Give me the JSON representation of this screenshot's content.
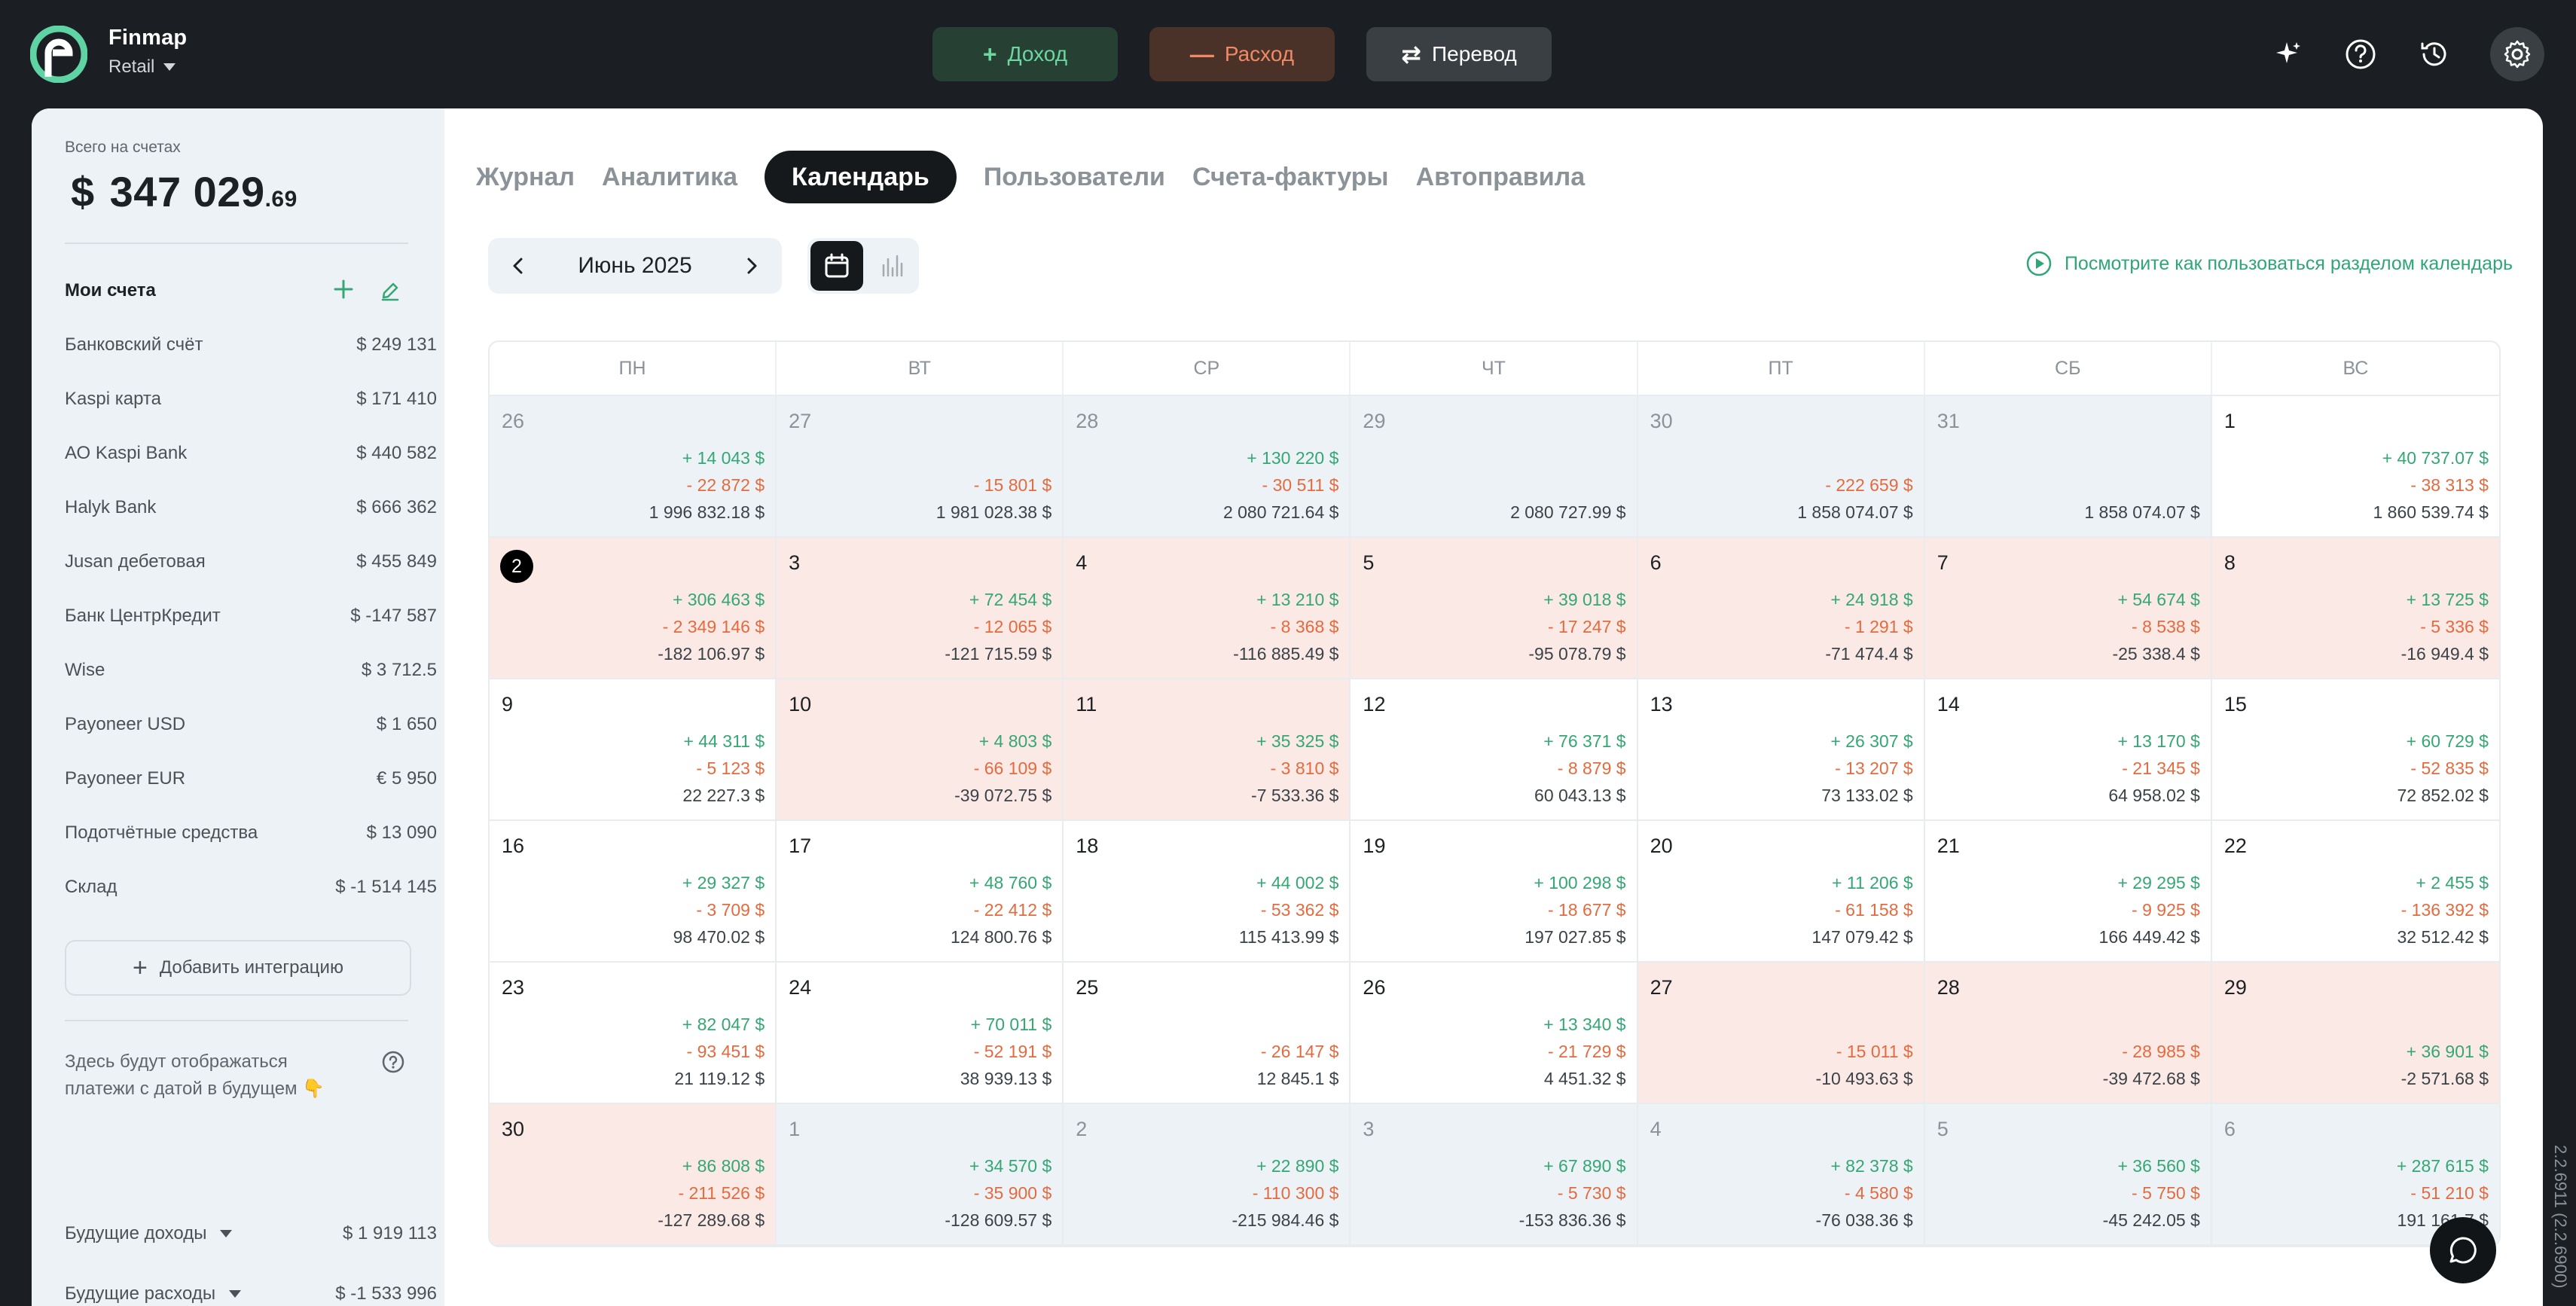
{
  "app": {
    "name": "Finmap",
    "workspace": "Retail"
  },
  "top_actions": {
    "income_label": "Доход",
    "expense_label": "Расход",
    "transfer_label": "Перевод"
  },
  "icons": {
    "top_right": [
      "sparkle-icon",
      "help-icon",
      "history-icon",
      "gear-icon"
    ]
  },
  "sidebar": {
    "total_label": "Всего на счетах",
    "total_currency": "$",
    "total_main": "347 029",
    "total_cents": ".69",
    "accounts_title": "Мои счета",
    "accounts": [
      {
        "name": "Банковский счёт",
        "amount": "$  249 131"
      },
      {
        "name": "Kaspi карта",
        "amount": "$  171 410"
      },
      {
        "name": "АО Kaspi Bank",
        "amount": "$  440 582"
      },
      {
        "name": "Halyk Bank",
        "amount": "$  666 362"
      },
      {
        "name": "Jusan дебетовая",
        "amount": "$  455 849"
      },
      {
        "name": "Банк ЦентрКредит",
        "amount": "$  -147 587"
      },
      {
        "name": "Wise",
        "amount": "$  3 712.5"
      },
      {
        "name": "Payoneer USD",
        "amount": "$  1 650"
      },
      {
        "name": "Payoneer EUR",
        "amount": "€  5 950"
      },
      {
        "name": "Подотчётные средства",
        "amount": "$  13 090"
      },
      {
        "name": "Склад",
        "amount": "$  -1 514 145"
      }
    ],
    "add_integration": "Добавить интеграцию",
    "future_note": "Здесь будут отображаться платежи с датой в будущем 👇",
    "future_income_label": "Будущие доходы",
    "future_income_amount": "$  1 919 113",
    "future_expense_label": "Будущие расходы",
    "future_expense_amount": "$  -1 533 996"
  },
  "tabs": [
    "Журнал",
    "Аналитика",
    "Календарь",
    "Пользователи",
    "Счета-фактуры",
    "Автоправила"
  ],
  "active_tab": "Календарь",
  "calendar_toolbar": {
    "month": "Июнь 2025",
    "howto_link": "Посмотрите как пользоваться разделом календарь"
  },
  "weekdays": [
    "ПН",
    "ВТ",
    "СР",
    "ЧТ",
    "ПТ",
    "СБ",
    "ВС"
  ],
  "colors": {
    "income": "#35a774",
    "expense": "#e36b3f",
    "negative_day_bg": "#fbe9e5",
    "other_month_bg": "#edf2f6"
  },
  "calendar_days": [
    {
      "day": "26",
      "income": "+ 14 043  $",
      "expense": "- 22 872  $",
      "balance": "1 996 832.18  $",
      "state": "other"
    },
    {
      "day": "27",
      "income": "",
      "expense": "- 15 801  $",
      "balance": "1 981 028.38  $",
      "state": "other"
    },
    {
      "day": "28",
      "income": "+ 130 220  $",
      "expense": "- 30 511  $",
      "balance": "2 080 721.64  $",
      "state": "other"
    },
    {
      "day": "29",
      "income": "",
      "expense": "",
      "balance": "2 080 727.99  $",
      "state": "other"
    },
    {
      "day": "30",
      "income": "",
      "expense": "- 222 659  $",
      "balance": "1 858 074.07  $",
      "state": "other"
    },
    {
      "day": "31",
      "income": "",
      "expense": "",
      "balance": "1 858 074.07  $",
      "state": "other"
    },
    {
      "day": "1",
      "income": "+ 40 737.07  $",
      "expense": "- 38 313  $",
      "balance": "1 860 539.74  $",
      "state": "normal"
    },
    {
      "day": "2",
      "income": "+ 306 463  $",
      "expense": "- 2 349 146  $",
      "balance": "-182 106.97  $",
      "state": "neg",
      "today": true
    },
    {
      "day": "3",
      "income": "+ 72 454  $",
      "expense": "- 12 065  $",
      "balance": "-121 715.59  $",
      "state": "neg"
    },
    {
      "day": "4",
      "income": "+ 13 210  $",
      "expense": "- 8 368  $",
      "balance": "-116 885.49  $",
      "state": "neg"
    },
    {
      "day": "5",
      "income": "+ 39 018  $",
      "expense": "- 17 247  $",
      "balance": "-95 078.79  $",
      "state": "neg"
    },
    {
      "day": "6",
      "income": "+ 24 918  $",
      "expense": "- 1 291  $",
      "balance": "-71 474.4  $",
      "state": "neg"
    },
    {
      "day": "7",
      "income": "+ 54 674  $",
      "expense": "- 8 538  $",
      "balance": "-25 338.4  $",
      "state": "neg"
    },
    {
      "day": "8",
      "income": "+ 13 725  $",
      "expense": "- 5 336  $",
      "balance": "-16 949.4  $",
      "state": "neg"
    },
    {
      "day": "9",
      "income": "+ 44 311  $",
      "expense": "- 5 123  $",
      "balance": "22 227.3  $",
      "state": "normal"
    },
    {
      "day": "10",
      "income": "+ 4 803  $",
      "expense": "- 66 109  $",
      "balance": "-39 072.75  $",
      "state": "neg"
    },
    {
      "day": "11",
      "income": "+ 35 325  $",
      "expense": "- 3 810  $",
      "balance": "-7 533.36  $",
      "state": "neg"
    },
    {
      "day": "12",
      "income": "+ 76 371  $",
      "expense": "- 8 879  $",
      "balance": "60 043.13  $",
      "state": "normal"
    },
    {
      "day": "13",
      "income": "+ 26 307  $",
      "expense": "- 13 207  $",
      "balance": "73 133.02  $",
      "state": "normal"
    },
    {
      "day": "14",
      "income": "+ 13 170  $",
      "expense": "- 21 345  $",
      "balance": "64 958.02  $",
      "state": "normal"
    },
    {
      "day": "15",
      "income": "+ 60 729  $",
      "expense": "- 52 835  $",
      "balance": "72 852.02  $",
      "state": "normal"
    },
    {
      "day": "16",
      "income": "+ 29 327  $",
      "expense": "- 3 709  $",
      "balance": "98 470.02  $",
      "state": "normal"
    },
    {
      "day": "17",
      "income": "+ 48 760  $",
      "expense": "- 22 412  $",
      "balance": "124 800.76  $",
      "state": "normal"
    },
    {
      "day": "18",
      "income": "+ 44 002  $",
      "expense": "- 53 362  $",
      "balance": "115 413.99  $",
      "state": "normal"
    },
    {
      "day": "19",
      "income": "+ 100 298  $",
      "expense": "- 18 677  $",
      "balance": "197 027.85  $",
      "state": "normal"
    },
    {
      "day": "20",
      "income": "+ 11 206  $",
      "expense": "- 61 158  $",
      "balance": "147 079.42  $",
      "state": "normal"
    },
    {
      "day": "21",
      "income": "+ 29 295  $",
      "expense": "- 9 925  $",
      "balance": "166 449.42  $",
      "state": "normal"
    },
    {
      "day": "22",
      "income": "+ 2 455  $",
      "expense": "- 136 392  $",
      "balance": "32 512.42  $",
      "state": "normal"
    },
    {
      "day": "23",
      "income": "+ 82 047  $",
      "expense": "- 93 451  $",
      "balance": "21 119.12  $",
      "state": "normal"
    },
    {
      "day": "24",
      "income": "+ 70 011  $",
      "expense": "- 52 191  $",
      "balance": "38 939.13  $",
      "state": "normal"
    },
    {
      "day": "25",
      "income": "",
      "expense": "- 26 147  $",
      "balance": "12 845.1  $",
      "state": "normal"
    },
    {
      "day": "26",
      "income": "+ 13 340  $",
      "expense": "- 21 729  $",
      "balance": "4 451.32  $",
      "state": "normal"
    },
    {
      "day": "27",
      "income": "",
      "expense": "- 15 011  $",
      "balance": "-10 493.63  $",
      "state": "neg"
    },
    {
      "day": "28",
      "income": "",
      "expense": "- 28 985  $",
      "balance": "-39 472.68  $",
      "state": "neg"
    },
    {
      "day": "29",
      "income": "",
      "expense": "+ 36 901  $",
      "balance": "-2 571.68  $",
      "state": "neg",
      "second_is_income": true
    },
    {
      "day": "30",
      "income": "+ 86 808  $",
      "expense": "- 211 526  $",
      "balance": "-127 289.68  $",
      "state": "neg"
    },
    {
      "day": "1",
      "income": "+ 34 570  $",
      "expense": "- 35 900  $",
      "balance": "-128 609.57  $",
      "state": "other"
    },
    {
      "day": "2",
      "income": "+ 22 890  $",
      "expense": "- 110 300  $",
      "balance": "-215 984.46  $",
      "state": "other"
    },
    {
      "day": "3",
      "income": "+ 67 890  $",
      "expense": "- 5 730  $",
      "balance": "-153 836.36  $",
      "state": "other"
    },
    {
      "day": "4",
      "income": "+ 82 378  $",
      "expense": "- 4 580  $",
      "balance": "-76 038.36  $",
      "state": "other"
    },
    {
      "day": "5",
      "income": "+ 36 560  $",
      "expense": "- 5 750  $",
      "balance": "-45 242.05  $",
      "state": "other"
    },
    {
      "day": "6",
      "income": "+ 287 615  $",
      "expense": "- 51 210  $",
      "balance": "191 161.7  $",
      "state": "other"
    }
  ],
  "version": "2.2.6911 (2.2.6900)"
}
